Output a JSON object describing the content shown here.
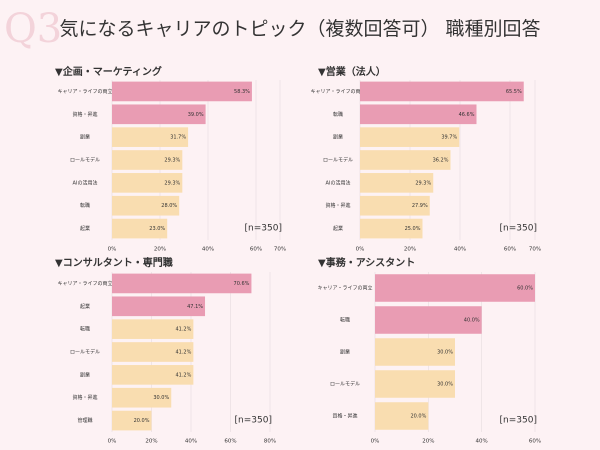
{
  "watermark": "Q3",
  "title": "気になるキャリアのトピック（複数回答可） 職種別回答",
  "chart_data": [
    {
      "type": "bar",
      "orientation": "horizontal",
      "title": "▼企画・マーケティング",
      "categories": [
        "キャリア・ライフの両立",
        "資格・昇進",
        "副業",
        "ロールモデル",
        "AIの活用法",
        "転職",
        "起業"
      ],
      "values": [
        58.3,
        39.0,
        31.7,
        29.3,
        29.3,
        28.0,
        23.0
      ],
      "value_labels": [
        "58.3%",
        "39.0%",
        "31.7%",
        "29.3%",
        "29.3%",
        "28.0%",
        "23.0%"
      ],
      "colors": [
        "#e99cb3",
        "#e99cb3",
        "#f9ddb0",
        "#f9ddb0",
        "#f9ddb0",
        "#f9ddb0",
        "#f9ddb0"
      ],
      "xlim": [
        0,
        70
      ],
      "xticks": [
        {
          "value": 0,
          "label": "0%"
        },
        {
          "value": 20,
          "label": "20%"
        },
        {
          "value": 40,
          "label": "40%"
        },
        {
          "value": 60,
          "label": "60%"
        },
        {
          "value": 70,
          "label": "70%"
        }
      ],
      "annotation": "[n=350]"
    },
    {
      "type": "bar",
      "orientation": "horizontal",
      "title": "▼営業（法人）",
      "categories": [
        "キャリア・ライフの両立",
        "転職",
        "副業",
        "ロールモデル",
        "AIの活用法",
        "資格・昇進",
        "起業"
      ],
      "values": [
        65.5,
        46.6,
        39.7,
        36.2,
        29.3,
        27.9,
        25.0
      ],
      "value_labels": [
        "65.5%",
        "46.6%",
        "39.7%",
        "36.2%",
        "29.3%",
        "27.9%",
        "25.0%"
      ],
      "colors": [
        "#e99cb3",
        "#e99cb3",
        "#f9ddb0",
        "#f9ddb0",
        "#f9ddb0",
        "#f9ddb0",
        "#f9ddb0"
      ],
      "xlim": [
        0,
        70
      ],
      "xticks": [
        {
          "value": 0,
          "label": "0%"
        },
        {
          "value": 20,
          "label": "20%"
        },
        {
          "value": 40,
          "label": "40%"
        },
        {
          "value": 60,
          "label": "60%"
        },
        {
          "value": 70,
          "label": "70%"
        }
      ],
      "annotation": "[n=350]"
    },
    {
      "type": "bar",
      "orientation": "horizontal",
      "title": "▼コンサルタント・専門職",
      "categories": [
        "キャリア・ライフの両立",
        "起業",
        "転職",
        "ロールモデル",
        "副業",
        "資格・昇進",
        "管理職"
      ],
      "values": [
        70.6,
        47.1,
        41.2,
        41.2,
        41.2,
        30.0,
        20.0
      ],
      "value_labels": [
        "70.6%",
        "47.1%",
        "41.2%",
        "41.2%",
        "41.2%",
        "30.0%",
        "20.0%"
      ],
      "colors": [
        "#e99cb3",
        "#e99cb3",
        "#f9ddb0",
        "#f9ddb0",
        "#f9ddb0",
        "#f9ddb0",
        "#f9ddb0"
      ],
      "xlim": [
        0,
        80
      ],
      "xticks": [
        {
          "value": 0,
          "label": "0%"
        },
        {
          "value": 20,
          "label": "20%"
        },
        {
          "value": 40,
          "label": "40%"
        },
        {
          "value": 60,
          "label": "60%"
        },
        {
          "value": 80,
          "label": "80%"
        }
      ],
      "annotation": "[n=350]"
    },
    {
      "type": "bar",
      "orientation": "horizontal",
      "title": "▼事務・アシスタント",
      "categories": [
        "キャリア・ライフの両立",
        "転職",
        "副業",
        "ロールモデル",
        "資格・昇進"
      ],
      "values": [
        60.0,
        40.0,
        30.0,
        30.0,
        20.0
      ],
      "value_labels": [
        "60.0%",
        "40.0%",
        "30.0%",
        "30.0%",
        "20.0%"
      ],
      "colors": [
        "#e99cb3",
        "#e99cb3",
        "#f9ddb0",
        "#f9ddb0",
        "#f9ddb0"
      ],
      "xlim": [
        0,
        60
      ],
      "xticks": [
        {
          "value": 0,
          "label": "0%"
        },
        {
          "value": 20,
          "label": "20%"
        },
        {
          "value": 40,
          "label": "40%"
        },
        {
          "value": 60,
          "label": "60%"
        }
      ],
      "annotation": "[n=350]"
    }
  ]
}
